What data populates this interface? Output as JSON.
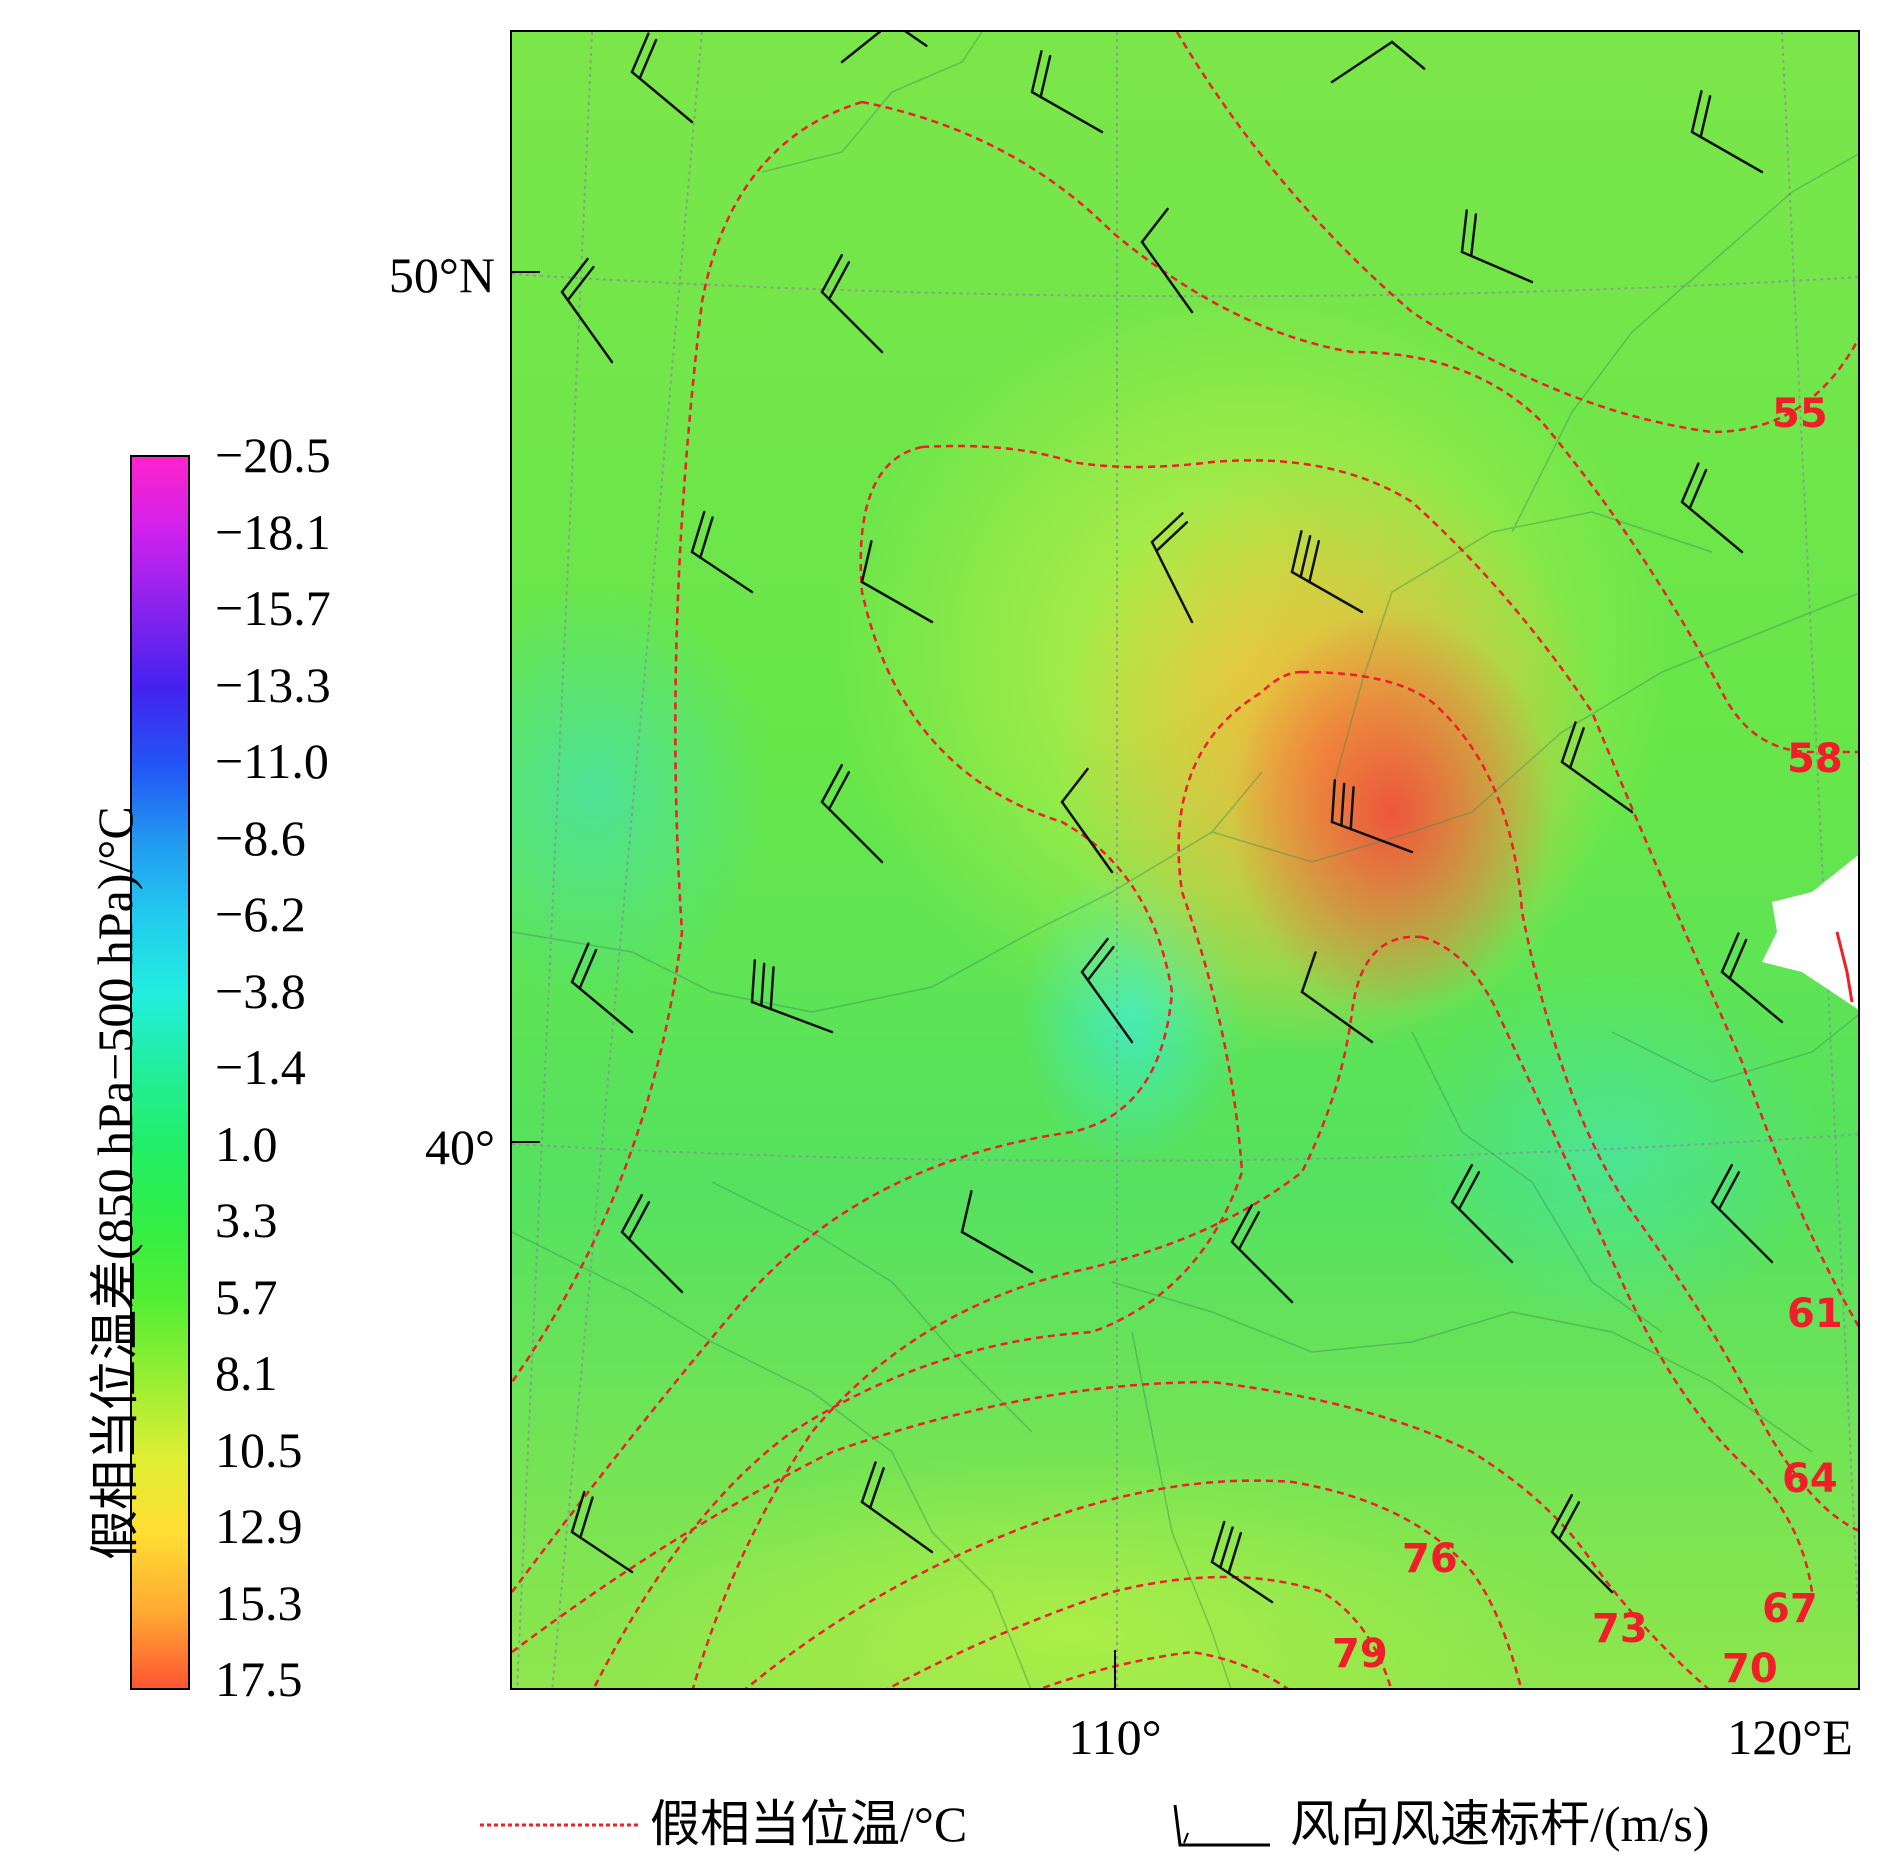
{
  "figure": {
    "latitude_labels": [
      "50°N",
      "40°"
    ],
    "longitude_labels": [
      "110°",
      "120°E"
    ]
  },
  "colorbar": {
    "title": "假相当位温差(850 hPa−500 hPa)/°C",
    "ticks": [
      "−20.5",
      "−18.1",
      "−15.7",
      "−13.3",
      "−11.0",
      "−8.6",
      "−6.2",
      "−3.8",
      "−1.4",
      "1.0",
      "3.3",
      "5.7",
      "8.1",
      "10.5",
      "12.9",
      "15.3",
      "17.5"
    ],
    "gradient_colors": [
      "#ff22cc",
      "#cc22ee",
      "#8822ee",
      "#4422f0",
      "#2255f5",
      "#2299f0",
      "#22ccee",
      "#22eedd",
      "#22ee99",
      "#22ee66",
      "#33ee44",
      "#55ee33",
      "#99ee33",
      "#ddee33",
      "#ffdd33",
      "#ffaa33",
      "#ff5533"
    ]
  },
  "contours": {
    "color": "#f01e28",
    "labels": [
      "55",
      "58",
      "61",
      "64",
      "67",
      "70",
      "73",
      "76",
      "79"
    ]
  },
  "legend": {
    "contour_label": "假相当位温/°C",
    "barb_label": "风向风速标杆/(m/s)"
  }
}
